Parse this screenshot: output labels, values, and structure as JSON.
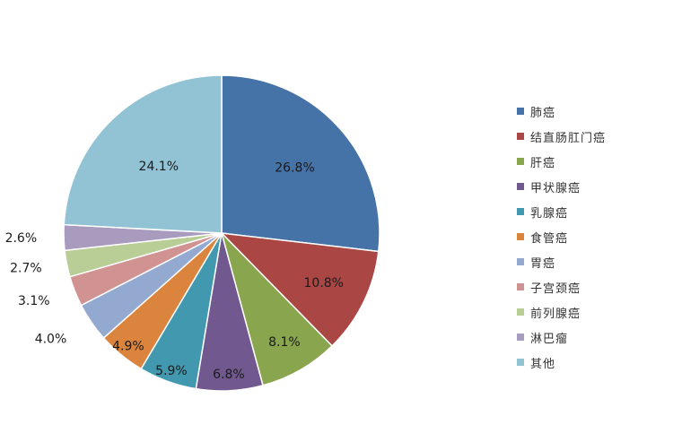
{
  "chart_data": {
    "type": "pie",
    "title": "",
    "categories": [
      "肺癌",
      "结直肠肛门癌",
      "肝癌",
      "甲状腺癌",
      "乳腺癌",
      "食管癌",
      "胃癌",
      "子宫颈癌",
      "前列腺癌",
      "淋巴瘤",
      "其他"
    ],
    "values": [
      26.8,
      10.8,
      8.1,
      6.8,
      5.9,
      4.9,
      4.0,
      3.1,
      2.7,
      2.6,
      24.1
    ],
    "labels": [
      "26.8%",
      "10.8%",
      "8.1%",
      "6.8%",
      "5.9%",
      "4.9%",
      "4.0%",
      "3.1%",
      "2.7%",
      "2.6%",
      "24.1%"
    ],
    "colors": [
      "#4573A7",
      "#AA4643",
      "#89A54E",
      "#71588F",
      "#4198AF",
      "#DB843D",
      "#93A9CF",
      "#D19392",
      "#B9CD96",
      "#A99BBD",
      "#92C3D4"
    ],
    "start_angle_deg": 0,
    "direction": "clockwise",
    "legend_position": "right"
  }
}
